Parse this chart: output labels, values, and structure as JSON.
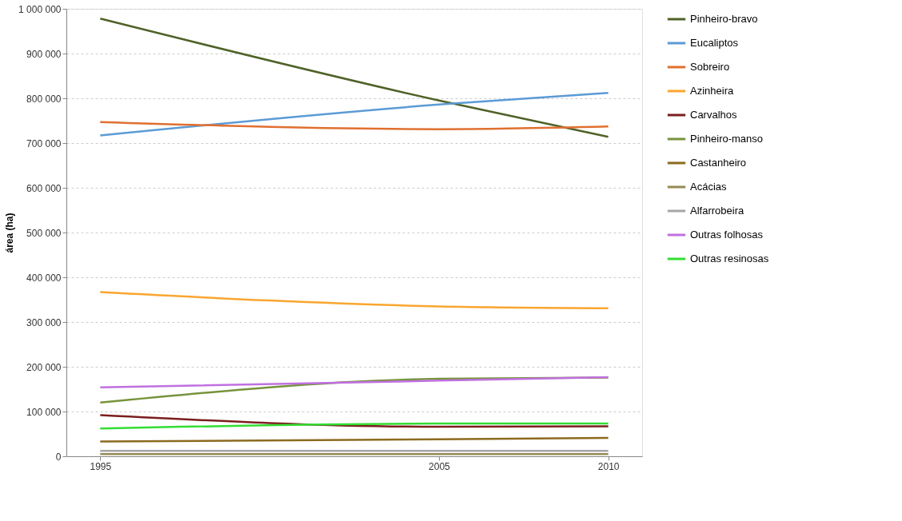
{
  "chart_data": {
    "type": "line",
    "ylabel": "área (ha)",
    "x": [
      1995,
      2005,
      2010
    ],
    "xlim": [
      1994,
      2011
    ],
    "xticks": [
      1995,
      2005,
      2010
    ],
    "ylim": [
      0,
      1000000
    ],
    "yticks": [
      {
        "value": 0,
        "label": "0"
      },
      {
        "value": 100000,
        "label": "100 000"
      },
      {
        "value": 200000,
        "label": "200 000"
      },
      {
        "value": 300000,
        "label": "300 000"
      },
      {
        "value": 400000,
        "label": "400 000"
      },
      {
        "value": 500000,
        "label": "500 000"
      },
      {
        "value": 600000,
        "label": "600 000"
      },
      {
        "value": 700000,
        "label": "700 000"
      },
      {
        "value": 800000,
        "label": "800 000"
      },
      {
        "value": 900000,
        "label": "900 000"
      },
      {
        "value": 1000000,
        "label": "1 000 000"
      }
    ],
    "grid": "y",
    "legend": "right",
    "marker": "none",
    "line_style": "solid",
    "series": [
      {
        "name": "Pinheiro-bravo",
        "color": "#4f6228",
        "values": [
          978000,
          795000,
          714000
        ]
      },
      {
        "name": "Eucaliptos",
        "color": "#5b9bd5",
        "values": [
          717000,
          786000,
          812000
        ]
      },
      {
        "name": "Sobreiro",
        "color": "#e07030",
        "values": [
          747000,
          731000,
          737000
        ]
      },
      {
        "name": "Azinheira",
        "color": "#f9a630",
        "values": [
          367000,
          335000,
          331000
        ]
      },
      {
        "name": "Carvalhos",
        "color": "#7b1e1e",
        "values": [
          92000,
          66000,
          67000
        ]
      },
      {
        "name": "Pinheiro-manso",
        "color": "#77933c",
        "values": [
          120000,
          173000,
          176000
        ]
      },
      {
        "name": "Castanheiro",
        "color": "#8c6a1f",
        "values": [
          33000,
          38000,
          41000
        ]
      },
      {
        "name": "Acácias",
        "color": "#948a54",
        "values": [
          5000,
          5000,
          5000
        ]
      },
      {
        "name": "Alfarrobeira",
        "color": "#a6a6a6",
        "values": [
          12000,
          12000,
          12000
        ]
      },
      {
        "name": "Outras folhosas",
        "color": "#c070e0",
        "values": [
          154000,
          169000,
          177000
        ]
      },
      {
        "name": "Outras resinosas",
        "color": "#33dd33",
        "values": [
          62000,
          73000,
          73000
        ]
      }
    ]
  }
}
